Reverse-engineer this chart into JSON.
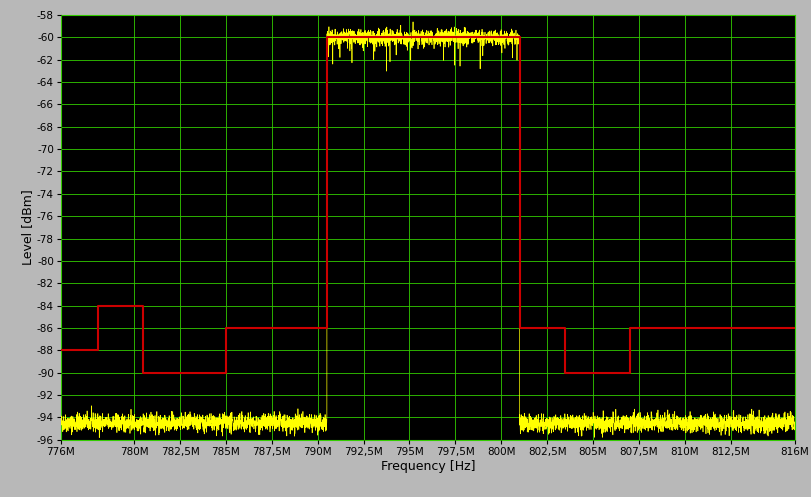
{
  "xlim": [
    776000000,
    816000000
  ],
  "ylim": [
    -96,
    -58
  ],
  "xticks": [
    776000000,
    780000000,
    782500000,
    785000000,
    787500000,
    790000000,
    792500000,
    795000000,
    797500000,
    800000000,
    802500000,
    805000000,
    807500000,
    810000000,
    812500000,
    816000000
  ],
  "xticklabels": [
    "776M",
    "780M",
    "782,5M",
    "785M",
    "787,5M",
    "790M",
    "792,5M",
    "795M",
    "797,5M",
    "800M",
    "802,5M",
    "805M",
    "807,5M",
    "810M",
    "812,5M",
    "816M"
  ],
  "yticks": [
    -58,
    -60,
    -62,
    -64,
    -66,
    -68,
    -70,
    -72,
    -74,
    -76,
    -78,
    -80,
    -82,
    -84,
    -86,
    -88,
    -90,
    -92,
    -94,
    -96
  ],
  "xlabel": "Frequency [Hz]",
  "ylabel": "Level [dBm]",
  "bg_color": "#000000",
  "fig_bg_color": "#b8b8b8",
  "grid_color": "#33cc00",
  "signal_color": "#ffff00",
  "mask_color": "#cc0000",
  "mask_pts_x": [
    776000000,
    778000000,
    778000000,
    780500000,
    780500000,
    785000000,
    785000000,
    790500000,
    790500000,
    801000000,
    801000000,
    803500000,
    803500000,
    807000000,
    807000000,
    810500000,
    810500000,
    816000000
  ],
  "mask_pts_y": [
    -88,
    -88,
    -84,
    -84,
    -90,
    -90,
    -86,
    -86,
    -60,
    -60,
    -86,
    -86,
    -90,
    -90,
    -86,
    -86,
    -86,
    -86
  ],
  "noise_floor": -94.5,
  "noise_amplitude": 0.4,
  "signal_band_start": 790500000,
  "signal_band_end": 801000000,
  "signal_level": -60.0,
  "signal_noise_amplitude": 0.35
}
